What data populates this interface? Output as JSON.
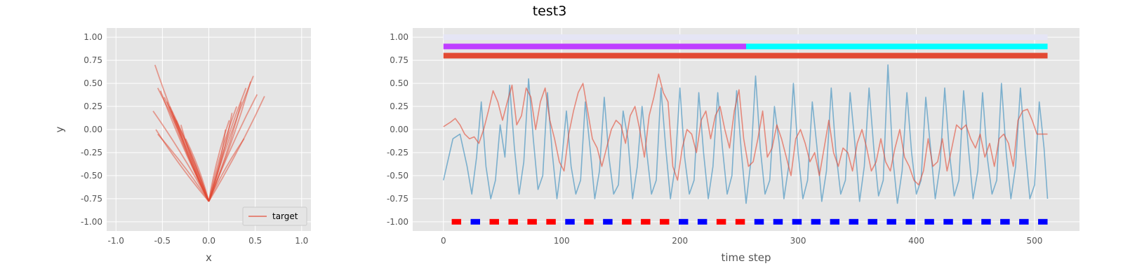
{
  "title": "test3",
  "colors": {
    "target": "#E24A33",
    "signal": "#348ABD",
    "band_top": "#E5E5F5",
    "band_purple": "#BF3EFF",
    "band_cyan": "#00FFFF",
    "band_red": "#E24A33",
    "marker_red": "#FF0000",
    "marker_blue": "#0000FF",
    "axes_bg": "#E5E5E5"
  },
  "chart_data": [
    {
      "type": "line",
      "xlabel": "x",
      "ylabel": "y",
      "xlim": [
        -1.1,
        1.1
      ],
      "ylim": [
        -1.1,
        1.1
      ],
      "xticks": [
        "-1.0",
        "-0.5",
        "0.0",
        "0.5",
        "1.0"
      ],
      "yticks": [
        "-1.00",
        "-0.75",
        "-0.50",
        "-0.25",
        "0.00",
        "0.25",
        "0.50",
        "0.75",
        "1.00"
      ],
      "grid": true,
      "legend": {
        "position": "lower-right",
        "entries": [
          "target"
        ]
      },
      "series": [
        {
          "name": "target",
          "color": "#E24A33",
          "endpoints_approx": [
            [
              -0.58,
              0.7
            ],
            [
              -0.55,
              0.45
            ],
            [
              -0.52,
              0.42
            ],
            [
              -0.48,
              0.35
            ],
            [
              -0.45,
              0.3
            ],
            [
              -0.42,
              0.25
            ],
            [
              -0.4,
              0.2
            ],
            [
              -0.38,
              0.15
            ],
            [
              -0.35,
              0.1
            ],
            [
              -0.6,
              0.2
            ],
            [
              -0.57,
              0.0
            ],
            [
              -0.55,
              -0.05
            ],
            [
              -0.3,
              0.05
            ],
            [
              -0.25,
              -0.1
            ],
            [
              0.48,
              0.58
            ],
            [
              0.45,
              0.52
            ],
            [
              0.4,
              0.45
            ],
            [
              0.35,
              0.3
            ],
            [
              0.3,
              0.25
            ],
            [
              0.25,
              0.18
            ],
            [
              0.22,
              0.1
            ],
            [
              0.6,
              0.36
            ],
            [
              0.52,
              0.38
            ],
            [
              0.18,
              0.0
            ],
            [
              0.38,
              -0.1
            ]
          ],
          "origin_approx": [
            0.0,
            -0.78
          ]
        }
      ]
    },
    {
      "type": "line",
      "xlabel": "time step",
      "ylabel": "",
      "xlim": [
        -26,
        538
      ],
      "ylim": [
        -1.1,
        1.1
      ],
      "xticks": [
        "0",
        "100",
        "200",
        "300",
        "400",
        "500"
      ],
      "yticks": [
        "-1.00",
        "-0.75",
        "-0.50",
        "-0.25",
        "0.00",
        "0.25",
        "0.50",
        "0.75",
        "1.00"
      ],
      "grid": true,
      "bands": [
        {
          "y": 1.0,
          "x_start": 0,
          "x_end": 511,
          "color": "#E5E5F5"
        },
        {
          "y": 0.9,
          "x_start": 0,
          "x_end": 256,
          "color": "#BF3EFF"
        },
        {
          "y": 0.9,
          "x_start": 256,
          "x_end": 511,
          "color": "#00FFFF"
        },
        {
          "y": 0.8,
          "x_start": 0,
          "x_end": 511,
          "color": "#E24A33"
        }
      ],
      "markers": {
        "y": -1.0,
        "x": [
          11,
          27,
          43,
          59,
          75,
          91,
          107,
          123,
          139,
          155,
          171,
          187,
          203,
          219,
          235,
          251,
          267,
          283,
          299,
          315,
          331,
          347,
          363,
          379,
          395,
          411,
          427,
          443,
          459,
          475,
          491,
          507
        ],
        "colors": [
          "red",
          "blue",
          "red",
          "red",
          "red",
          "red",
          "blue",
          "red",
          "blue",
          "red",
          "red",
          "red",
          "blue",
          "blue",
          "red",
          "red",
          "blue",
          "blue",
          "blue",
          "blue",
          "blue",
          "blue",
          "blue",
          "blue",
          "blue",
          "blue",
          "blue",
          "blue",
          "blue",
          "blue",
          "blue",
          "blue"
        ]
      },
      "series": [
        {
          "color": "#348ABD",
          "x": [
            0,
            8,
            14,
            20,
            24,
            28,
            32,
            36,
            40,
            44,
            48,
            52,
            56,
            60,
            64,
            68,
            72,
            76,
            80,
            84,
            88,
            92,
            96,
            100,
            104,
            108,
            112,
            116,
            120,
            124,
            128,
            132,
            136,
            140,
            144,
            148,
            152,
            156,
            160,
            164,
            168,
            172,
            176,
            180,
            184,
            188,
            192,
            196,
            200,
            204,
            208,
            212,
            216,
            220,
            224,
            228,
            232,
            236,
            240,
            244,
            248,
            252,
            256,
            260,
            264,
            268,
            272,
            276,
            280,
            284,
            288,
            292,
            296,
            300,
            304,
            308,
            312,
            316,
            320,
            324,
            328,
            332,
            336,
            340,
            344,
            348,
            352,
            356,
            360,
            364,
            368,
            372,
            376,
            380,
            384,
            388,
            392,
            396,
            400,
            404,
            408,
            412,
            416,
            420,
            424,
            428,
            432,
            436,
            440,
            444,
            448,
            452,
            456,
            460,
            464,
            468,
            472,
            476,
            480,
            484,
            488,
            492,
            496,
            500,
            504,
            508,
            511
          ],
          "y": [
            -0.55,
            -0.1,
            -0.05,
            -0.4,
            -0.7,
            -0.3,
            0.3,
            -0.4,
            -0.75,
            -0.55,
            0.05,
            -0.3,
            0.48,
            -0.2,
            -0.7,
            -0.35,
            0.55,
            -0.1,
            -0.65,
            -0.5,
            0.4,
            -0.25,
            -0.75,
            -0.35,
            0.2,
            -0.4,
            -0.7,
            -0.55,
            0.3,
            -0.2,
            -0.75,
            -0.45,
            0.35,
            -0.3,
            -0.7,
            -0.6,
            0.2,
            -0.1,
            -0.75,
            -0.4,
            0.25,
            -0.25,
            -0.7,
            -0.55,
            0.45,
            -0.2,
            -0.75,
            -0.4,
            0.45,
            -0.3,
            -0.7,
            -0.55,
            0.4,
            -0.25,
            -0.75,
            -0.4,
            0.4,
            -0.2,
            -0.7,
            -0.5,
            0.42,
            -0.25,
            -0.8,
            -0.35,
            0.58,
            -0.2,
            -0.7,
            -0.55,
            0.25,
            -0.15,
            -0.75,
            -0.4,
            0.5,
            -0.25,
            -0.75,
            -0.55,
            0.3,
            -0.2,
            -0.78,
            -0.45,
            0.45,
            -0.25,
            -0.7,
            -0.55,
            0.4,
            -0.15,
            -0.78,
            -0.4,
            0.45,
            -0.2,
            -0.72,
            -0.55,
            0.7,
            -0.3,
            -0.8,
            -0.45,
            0.4,
            -0.25,
            -0.7,
            -0.55,
            0.35,
            -0.2,
            -0.75,
            -0.4,
            0.45,
            -0.25,
            -0.72,
            -0.55,
            0.42,
            -0.2,
            -0.75,
            -0.45,
            0.4,
            -0.3,
            -0.7,
            -0.55,
            0.5,
            -0.25,
            -0.75,
            -0.4,
            0.45,
            -0.2,
            -0.75,
            -0.6,
            0.3,
            -0.2,
            -0.75
          ]
        },
        {
          "color": "#E24A33",
          "x": [
            0,
            6,
            10,
            14,
            18,
            22,
            26,
            30,
            34,
            38,
            42,
            46,
            50,
            54,
            58,
            62,
            66,
            70,
            74,
            78,
            82,
            86,
            90,
            94,
            98,
            102,
            106,
            110,
            114,
            118,
            122,
            126,
            130,
            134,
            138,
            142,
            146,
            150,
            154,
            158,
            162,
            166,
            170,
            174,
            178,
            182,
            186,
            190,
            194,
            198,
            202,
            206,
            210,
            214,
            218,
            222,
            226,
            230,
            234,
            238,
            242,
            246,
            250,
            254,
            258,
            262,
            266,
            270,
            274,
            278,
            282,
            286,
            290,
            294,
            298,
            302,
            306,
            310,
            314,
            318,
            322,
            326,
            330,
            334,
            338,
            342,
            346,
            350,
            354,
            358,
            362,
            366,
            370,
            374,
            378,
            382,
            386,
            390,
            394,
            398,
            402,
            406,
            410,
            414,
            418,
            422,
            426,
            430,
            434,
            438,
            442,
            446,
            450,
            454,
            458,
            462,
            466,
            470,
            474,
            478,
            482,
            486,
            490,
            494,
            498,
            502,
            506,
            511
          ],
          "y": [
            0.03,
            0.08,
            0.12,
            0.05,
            -0.05,
            -0.1,
            -0.08,
            -0.15,
            0.0,
            0.2,
            0.42,
            0.3,
            0.1,
            0.3,
            0.48,
            0.05,
            0.15,
            0.45,
            0.35,
            0.0,
            0.3,
            0.45,
            0.1,
            -0.1,
            -0.35,
            -0.45,
            -0.05,
            0.2,
            0.4,
            0.5,
            0.2,
            -0.1,
            -0.2,
            -0.4,
            -0.2,
            0.0,
            0.1,
            0.05,
            -0.15,
            0.15,
            0.25,
            0.0,
            -0.3,
            0.15,
            0.35,
            0.6,
            0.4,
            0.3,
            -0.4,
            -0.55,
            -0.2,
            0.0,
            -0.05,
            -0.25,
            0.1,
            0.2,
            -0.1,
            0.15,
            0.25,
            0.0,
            -0.2,
            0.2,
            0.43,
            -0.1,
            -0.4,
            -0.35,
            -0.1,
            0.2,
            -0.3,
            -0.2,
            0.05,
            -0.1,
            -0.3,
            -0.5,
            -0.1,
            0.0,
            -0.15,
            -0.35,
            -0.25,
            -0.5,
            -0.2,
            0.1,
            -0.25,
            -0.4,
            -0.2,
            -0.25,
            -0.45,
            -0.15,
            0.0,
            -0.2,
            -0.45,
            -0.35,
            -0.1,
            -0.35,
            -0.45,
            -0.2,
            0.0,
            -0.3,
            -0.4,
            -0.55,
            -0.6,
            -0.45,
            -0.1,
            -0.4,
            -0.35,
            -0.1,
            -0.45,
            -0.2,
            0.05,
            0.0,
            0.05,
            -0.1,
            -0.2,
            -0.05,
            -0.3,
            -0.15,
            -0.4,
            -0.1,
            -0.05,
            -0.15,
            -0.4,
            0.1,
            0.2,
            0.22,
            0.1,
            -0.05,
            -0.05,
            -0.05
          ]
        }
      ]
    }
  ]
}
